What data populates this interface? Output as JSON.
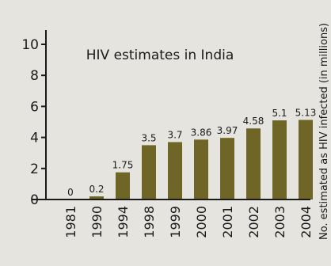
{
  "chart_data": {
    "type": "bar",
    "title": "HIV estimates in India",
    "xlabel": "",
    "ylabel": "No. estimated as HIV infected (in millions)",
    "categories": [
      "1981",
      "1990",
      "1994",
      "1998",
      "1999",
      "2000",
      "2001",
      "2002",
      "2003",
      "2004"
    ],
    "values": [
      0,
      0.2,
      1.75,
      3.5,
      3.7,
      3.86,
      3.97,
      4.58,
      5.1,
      5.13
    ],
    "value_labels": [
      "0",
      "0.2",
      "1.75",
      "3.5",
      "3.7",
      "3.86",
      "3.97",
      "4.58",
      "5.1",
      "5.13"
    ],
    "yticks": [
      "0",
      "2",
      "4",
      "6",
      "8",
      "10"
    ],
    "ylim": [
      0,
      11
    ],
    "grid": false,
    "legend": "none",
    "colors": {
      "bar": "#6f6526",
      "axis": "#1a1a1a",
      "background": "#e6e4df"
    }
  }
}
